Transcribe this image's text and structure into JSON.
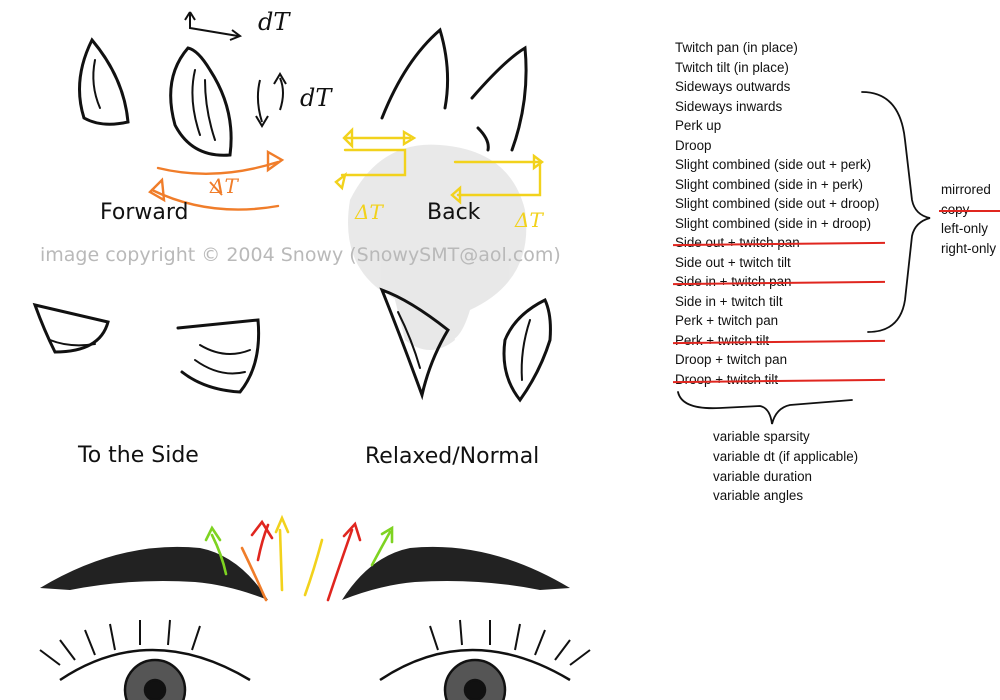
{
  "labels": {
    "forward": "Forward",
    "back": "Back",
    "side": "To the Side",
    "relaxed": "Relaxed/Normal",
    "copyright": "image copyright © 2004 Snowy (SnowySMT@aol.com)",
    "dt_top": "dT",
    "dt_mid": "dT",
    "dt_forward": "ΔT",
    "dt_back_left": "ΔT",
    "dt_back_right": "ΔT"
  },
  "movements": [
    {
      "label": "Twitch pan  (in place)",
      "struck": false
    },
    {
      "label": "Twitch tilt   (in place)",
      "struck": false
    },
    {
      "label": "Sideways outwards",
      "struck": false
    },
    {
      "label": "Sideways inwards",
      "struck": false
    },
    {
      "label": "Perk up",
      "struck": false
    },
    {
      "label": "Droop",
      "struck": false
    },
    {
      "label": "Slight combined (side out + perk)",
      "struck": false
    },
    {
      "label": "Slight combined (side in + perk)",
      "struck": false
    },
    {
      "label": "Slight combined (side out + droop)",
      "struck": false
    },
    {
      "label": "Slight combined (side in + droop)",
      "struck": false
    },
    {
      "label": "Side out + twitch pan",
      "struck": true
    },
    {
      "label": "Side out + twitch tilt",
      "struck": false
    },
    {
      "label": "Side in + twitch pan",
      "struck": true
    },
    {
      "label": "Side in + twitch tilt",
      "struck": false
    },
    {
      "label": "Perk + twitch pan",
      "struck": false
    },
    {
      "label": "Perk + twitch tilt",
      "struck": true
    },
    {
      "label": "Droop + twitch pan",
      "struck": false
    },
    {
      "label": "Droop + twitch tilt",
      "struck": true
    }
  ],
  "modes": [
    {
      "label": "mirrored",
      "struck": false
    },
    {
      "label": "copy",
      "struck": true
    },
    {
      "label": "left-only",
      "struck": false
    },
    {
      "label": "right-only",
      "struck": false
    }
  ],
  "variables": [
    "variable sparsity",
    "variable dt (if applicable)",
    "variable duration",
    "variable angles"
  ],
  "colors": {
    "ink": "#111111",
    "orange": "#f07d2a",
    "yellow": "#f2d21c",
    "red": "#e0261f",
    "green": "#7ed321",
    "strike": "#e0261f",
    "watermark": "#b9b9b9"
  }
}
